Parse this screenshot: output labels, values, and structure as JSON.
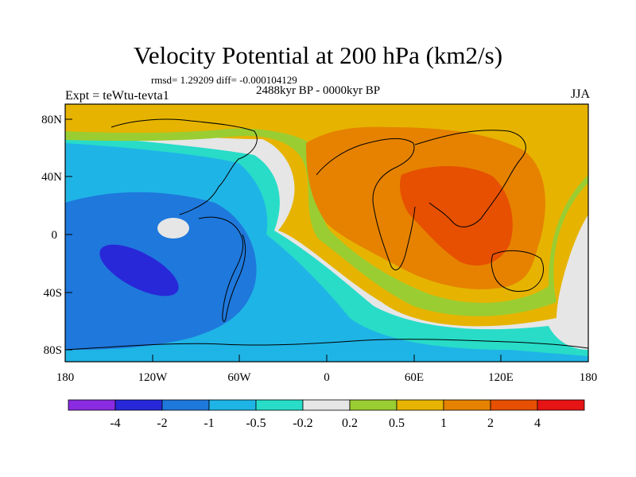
{
  "title": "Velocity Potential at 200 hPa (km2/s)",
  "stats": "rmsd= 1.29209 diff= -0.000104129",
  "period": "2488kyr BP - 0000kyr BP",
  "experiment": "Expt = teWtu-tevta1",
  "season": "JJA",
  "axes": {
    "lat_ticks": [
      "80N",
      "40N",
      "0",
      "40S",
      "80S"
    ],
    "lon_ticks": [
      "180",
      "120W",
      "60W",
      "0",
      "60E",
      "120E",
      "180"
    ]
  },
  "colorbar": {
    "colors": [
      "#8a2be2",
      "#2828d8",
      "#1f78dc",
      "#1fb4e6",
      "#28dcc8",
      "#e6e6e6",
      "#9acd32",
      "#e6b400",
      "#e68200",
      "#e65000",
      "#e61414"
    ],
    "labels": [
      "-4",
      "-2",
      "-1",
      "-0.5",
      "-0.2",
      "0.2",
      "0.5",
      "1",
      "2",
      "4"
    ]
  },
  "palette": {
    "neg_deep": "#2828d8",
    "neg_strong": "#1f78dc",
    "neg_mid": "#1fb4e6",
    "neg_weak": "#28dcc8",
    "neutral": "#e6e6e6",
    "pos_weak": "#9acd32",
    "pos_mid": "#e6b400",
    "pos_strong": "#e68200",
    "pos_deep": "#e65000"
  }
}
